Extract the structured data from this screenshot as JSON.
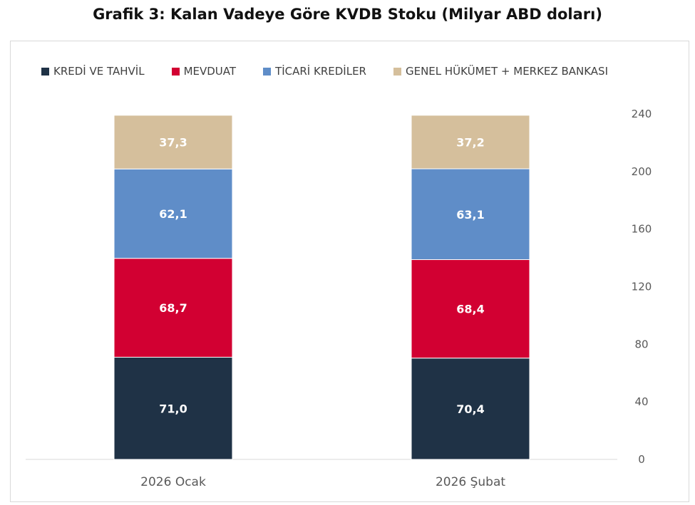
{
  "chart_data": {
    "type": "bar",
    "stacked": true,
    "title": "Grafik 3: Kalan Vadeye Göre KVDB Stoku (Milyar ABD doları)",
    "categories": [
      "2026 Ocak",
      "2026 Şubat"
    ],
    "series": [
      {
        "name": "KREDİ VE TAHVİL",
        "color": "#1f3246",
        "values": [
          71.0,
          70.4
        ],
        "labels": [
          "71,0",
          "70,4"
        ]
      },
      {
        "name": "MEVDUAT",
        "color": "#d20032",
        "values": [
          68.7,
          68.4
        ],
        "labels": [
          "68,7",
          "68,4"
        ]
      },
      {
        "name": "TİCARİ KREDİLER",
        "color": "#5f8dc8",
        "values": [
          62.1,
          63.1
        ],
        "labels": [
          "62,1",
          "63,1"
        ]
      },
      {
        "name": "GENEL HÜKÜMET + MERKEZ BANKASI",
        "color": "#d5bf9c",
        "values": [
          37.3,
          37.2
        ],
        "labels": [
          "37,3",
          "37,2"
        ]
      }
    ],
    "yaxis": {
      "position": "right",
      "ylim": [
        0,
        240
      ],
      "ticks": [
        "0",
        "40",
        "80",
        "120",
        "160",
        "200",
        "240"
      ]
    },
    "grid": false,
    "legend": "top"
  }
}
